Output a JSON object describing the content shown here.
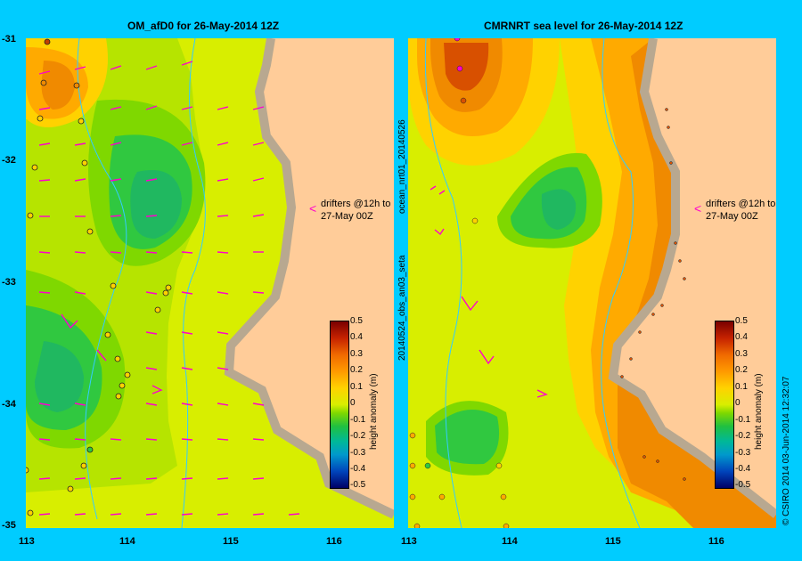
{
  "panels": {
    "left": {
      "title": "OM_afD0 for 26-May-2014 12Z",
      "annotation_line1": "drifters @12h to",
      "annotation_line2": "27-May 00Z"
    },
    "right": {
      "title": "CMRNRT sea level  for 26-May-2014 12Z",
      "annotation_line1": "drifters @12h to",
      "annotation_line2": "27-May 00Z"
    }
  },
  "axes": {
    "y_ticks": [
      "-31",
      "-32",
      "-33",
      "-34",
      "-35"
    ],
    "x_ticks": [
      "113",
      "114",
      "115",
      "116"
    ]
  },
  "colorbar": {
    "title": "height anomaly (m)",
    "ticks": [
      "0.5",
      "0.4",
      "0.3",
      "0.2",
      "0.1",
      "0",
      "-0.1",
      "-0.2",
      "-0.3",
      "-0.4",
      "-0.5"
    ]
  },
  "side_texts": {
    "left_vertical": "20140524_obs_an03_seta",
    "left_vertical_top": "ocean_nrt01_20140526",
    "right_vertical": "© CSIRO 2014   03-Jun-2014 12:32:07"
  },
  "colors": {
    "land": "#ffcc99",
    "coast": "#b8a890",
    "background": "#00ccff",
    "vectors": "#ff00cc"
  }
}
